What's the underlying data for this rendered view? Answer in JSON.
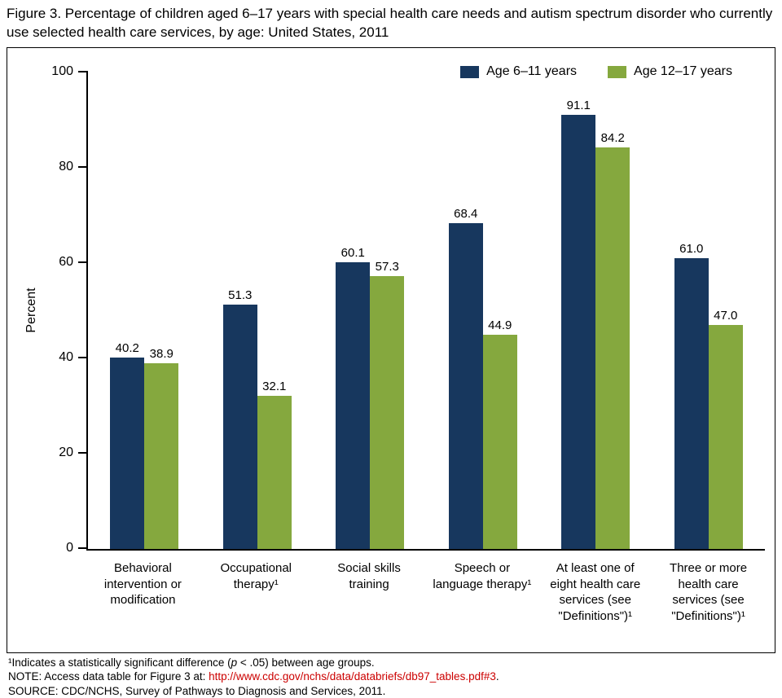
{
  "title": "Figure 3. Percentage of children aged 6–17 years with special health care needs and autism spectrum disorder who currently use selected health care services, by age: United States, 2011",
  "chart_data": {
    "type": "bar",
    "title": "Percentage of children aged 6–17 years with special health care needs and autism spectrum disorder who currently use selected health care services, by age: United States, 2011",
    "ylabel": "Percent",
    "xlabel": "",
    "ylim": [
      0,
      100
    ],
    "yticks": [
      0,
      20,
      40,
      60,
      80,
      100
    ],
    "grid": false,
    "legend_position": "top-right",
    "categories": [
      "Behavioral intervention or modification",
      "Occupational therapy¹",
      "Social skills training",
      "Speech or language therapy¹",
      "At least one of eight health care services (see \"Definitions\")¹",
      "Three or more health care services (see \"Definitions\")¹"
    ],
    "series": [
      {
        "name": "Age 6–11 years",
        "color": "#17375e",
        "values": [
          40.2,
          51.3,
          60.1,
          68.4,
          91.1,
          61.0
        ]
      },
      {
        "name": "Age 12–17 years",
        "color": "#85a83e",
        "values": [
          38.9,
          32.1,
          57.3,
          44.9,
          84.2,
          47.0
        ]
      }
    ]
  },
  "footnotes": {
    "fn1_pre": "¹Indicates a statistically significant difference (",
    "fn1_italic": "p",
    "fn1_post": " < .05) between age groups.",
    "note_prefix": "NOTE: Access data table for Figure 3 at: ",
    "note_link": "http://www.cdc.gov/nchs/data/databriefs/db97_tables.pdf#3",
    "note_suffix": ".",
    "source": "SOURCE: CDC/NCHS, Survey of Pathways to Diagnosis and Services, 2011."
  },
  "colors": {
    "navy": "#17375e",
    "green": "#85a83e",
    "link_red": "#cc0000"
  }
}
